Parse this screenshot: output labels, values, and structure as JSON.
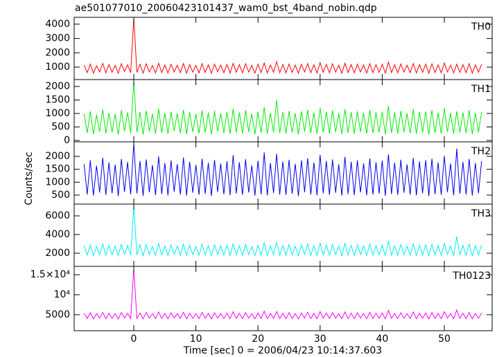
{
  "chart_data": {
    "type": "line",
    "title": "ae501077010_20060423101437_wam0_bst_4band_nobin.qdp",
    "xlabel": "Time [sec] 0 = 2006/04/23 10:14:37.603",
    "ylabel": "Counts/sec",
    "xlim": [
      -9.6,
      57.7
    ],
    "xticks": [
      0,
      10,
      20,
      30,
      40,
      50
    ],
    "x": [
      -8,
      -7.5,
      -7,
      -6.5,
      -6,
      -5.5,
      -5,
      -4.5,
      -4,
      -3.5,
      -3,
      -2.5,
      -2,
      -1.5,
      -1,
      -0.5,
      0,
      0.5,
      1,
      1.5,
      2,
      2.5,
      3,
      3.5,
      4,
      4.5,
      5,
      5.5,
      6,
      6.5,
      7,
      7.5,
      8,
      8.5,
      9,
      9.5,
      10,
      10.5,
      11,
      11.5,
      12,
      12.5,
      13,
      13.5,
      14,
      14.5,
      15,
      15.5,
      16,
      16.5,
      17,
      17.5,
      18,
      18.5,
      19,
      19.5,
      20,
      20.5,
      21,
      21.5,
      22,
      22.5,
      23,
      23.5,
      24,
      24.5,
      25,
      25.5,
      26,
      26.5,
      27,
      27.5,
      28,
      28.5,
      29,
      29.5,
      30,
      30.5,
      31,
      31.5,
      32,
      32.5,
      33,
      33.5,
      34,
      34.5,
      35,
      35.5,
      36,
      36.5,
      37,
      37.5,
      38,
      38.5,
      39,
      39.5,
      40,
      40.5,
      41,
      41.5,
      42,
      42.5,
      43,
      43.5,
      44,
      44.5,
      45,
      45.5,
      46,
      46.5,
      47,
      47.5,
      48,
      48.5,
      49,
      49.5,
      50,
      50.5,
      51,
      51.5,
      52,
      52.5,
      53,
      53.5,
      54,
      54.5,
      55,
      55.5,
      56
    ],
    "series": [
      {
        "name": "TH0",
        "color": "#ff0000",
        "ylim": [
          130,
          4480
        ],
        "yticks": [
          1000,
          2000,
          3000,
          4000
        ],
        "values": [
          1150,
          620,
          1210,
          580,
          1090,
          660,
          1260,
          600,
          1180,
          640,
          1120,
          570,
          1240,
          690,
          1160,
          610,
          4400,
          640,
          1190,
          580,
          1230,
          660,
          1110,
          600,
          1270,
          620,
          1150,
          590,
          1200,
          670,
          1130,
          610,
          1250,
          580,
          1180,
          650,
          1120,
          600,
          1240,
          630,
          1160,
          570,
          1210,
          680,
          1140,
          610,
          1190,
          590,
          1260,
          640,
          1170,
          600,
          1230,
          660,
          1120,
          580,
          1200,
          620,
          1290,
          590,
          1150,
          650,
          1380,
          610,
          1180,
          600,
          1220,
          630,
          1140,
          570,
          1200,
          660,
          1250,
          610,
          1160,
          590,
          1310,
          640,
          1190,
          600,
          1230,
          650,
          1130,
          580,
          1270,
          620,
          1180,
          600,
          1210,
          660,
          1150,
          590,
          1240,
          610,
          1170,
          630,
          1200,
          580,
          1350,
          620,
          1160,
          600,
          1220,
          650,
          1130,
          610,
          1250,
          590,
          1180,
          640,
          1200,
          570,
          1230,
          620,
          1160,
          600,
          1290,
          660,
          1140,
          590,
          1210,
          630,
          1170,
          610,
          1240,
          580,
          1150,
          640,
          1190
        ]
      },
      {
        "name": "TH1",
        "color": "#00ee00",
        "ylim": [
          -51,
          2256
        ],
        "yticks": [
          0,
          500,
          1000,
          1500,
          2000
        ],
        "values": [
          1000,
          280,
          1080,
          230,
          950,
          320,
          1150,
          260,
          1020,
          300,
          980,
          210,
          1120,
          340,
          1040,
          270,
          2200,
          300,
          1060,
          220,
          1100,
          330,
          990,
          250,
          1170,
          290,
          1010,
          240,
          1070,
          350,
          1000,
          270,
          1130,
          230,
          1050,
          310,
          980,
          260,
          1110,
          290,
          1030,
          220,
          1090,
          340,
          1000,
          270,
          1060,
          250,
          1180,
          300,
          1040,
          260,
          1120,
          320,
          990,
          230,
          1070,
          280,
          1230,
          250,
          1020,
          310,
          1500,
          270,
          1050,
          260,
          1090,
          290,
          1010,
          220,
          1080,
          320,
          1140,
          270,
          1030,
          250,
          1200,
          300,
          1060,
          260,
          1110,
          310,
          1000,
          240,
          1160,
          280,
          1050,
          260,
          1080,
          320,
          1020,
          250,
          1130,
          270,
          1040,
          290,
          1070,
          230,
          1280,
          280,
          1030,
          260,
          1090,
          310,
          1000,
          270,
          1150,
          250,
          1050,
          300,
          1070,
          220,
          1120,
          280,
          1030,
          260,
          1190,
          320,
          1010,
          250,
          1080,
          290,
          1040,
          270,
          1130,
          240,
          1020,
          300,
          1060
        ]
      },
      {
        "name": "TH2",
        "color": "#0000ee",
        "ylim": [
          151,
          2563
        ],
        "yticks": [
          500,
          1000,
          1500,
          2000
        ],
        "values": [
          1700,
          520,
          1850,
          480,
          1640,
          600,
          1950,
          510,
          1760,
          570,
          1680,
          460,
          1900,
          620,
          1780,
          530,
          2500,
          560,
          1820,
          470,
          1880,
          610,
          1660,
          500,
          2000,
          540,
          1740,
          490,
          1840,
          630,
          1700,
          520,
          1960,
          480,
          1790,
          590,
          1670,
          510,
          1910,
          550,
          1750,
          470,
          1860,
          620,
          1720,
          530,
          1810,
          500,
          2050,
          560,
          1770,
          510,
          1890,
          600,
          1650,
          480,
          1830,
          530,
          2150,
          490,
          1740,
          580,
          2100,
          520,
          1800,
          510,
          1870,
          550,
          1710,
          460,
          1840,
          610,
          1930,
          520,
          1760,
          490,
          2060,
          570,
          1820,
          510,
          1880,
          590,
          1690,
          480,
          1980,
          540,
          1790,
          500,
          1850,
          600,
          1730,
          490,
          1920,
          520,
          1770,
          560,
          1830,
          470,
          2080,
          540,
          1750,
          510,
          1870,
          590,
          1690,
          520,
          1940,
          490,
          1800,
          570,
          1850,
          460,
          1910,
          530,
          1760,
          510,
          2020,
          610,
          1720,
          490,
          2300,
          550,
          1780,
          520,
          1900,
          480,
          1740,
          570,
          1820
        ]
      },
      {
        "name": "TH3",
        "color": "#00eeee",
        "ylim": [
          593,
          7259
        ],
        "yticks": [
          2000,
          4000,
          6000
        ],
        "values": [
          2800,
          1800,
          2900,
          1750,
          2720,
          1860,
          3000,
          1780,
          2850,
          1830,
          2760,
          1720,
          2950,
          1880,
          2820,
          1790,
          7000,
          1820,
          2880,
          1740,
          2930,
          1870,
          2730,
          1770,
          3050,
          1810,
          2790,
          1760,
          2890,
          1890,
          2750,
          1800,
          2980,
          1750,
          2840,
          1850,
          2710,
          1780,
          2960,
          1820,
          2800,
          1730,
          2910,
          1880,
          2770,
          1790,
          2860,
          1760,
          3020,
          1830,
          2810,
          1780,
          2940,
          1860,
          2700,
          1740,
          2870,
          1800,
          3150,
          1760,
          2790,
          1840,
          3200,
          1790,
          2850,
          1780,
          2920,
          1820,
          2760,
          1730,
          2890,
          1870,
          2990,
          1790,
          2810,
          1760,
          3100,
          1840,
          2870,
          1780,
          2930,
          1850,
          2740,
          1750,
          3060,
          1810,
          2840,
          1770,
          2900,
          1870,
          2780,
          1760,
          2970,
          1790,
          2820,
          1830,
          2880,
          1740,
          3300,
          1810,
          2800,
          1780,
          2920,
          1850,
          2740,
          1790,
          3000,
          1760,
          2850,
          1840,
          2900,
          1730,
          2960,
          1800,
          2810,
          1780,
          3050,
          1870,
          2770,
          1760,
          3800,
          1820,
          2830,
          1790,
          2950,
          1750,
          2790,
          1840,
          2870
        ]
      },
      {
        "name": "TH0123",
        "color": "#ff00ff",
        "ylim": [
          1000,
          17100
        ],
        "yticks": [
          5000,
          {
            "value": 10000,
            "label": "10⁴"
          },
          {
            "value": 15000,
            "label": "1.5×10⁴"
          }
        ],
        "values": [
          5300,
          4050,
          5500,
          3950,
          5250,
          4150,
          5600,
          4000,
          5400,
          4100,
          5280,
          3920,
          5550,
          4180,
          5350,
          4020,
          16500,
          4080,
          5450,
          3960,
          5520,
          4160,
          5260,
          3990,
          5700,
          4060,
          5320,
          3980,
          5480,
          4190,
          5290,
          4030,
          5620,
          3970,
          5380,
          4120,
          5240,
          4010,
          5580,
          4070,
          5340,
          3940,
          5500,
          4170,
          5300,
          4020,
          5410,
          3990,
          5750,
          4090,
          5360,
          4010,
          5530,
          4140,
          5230,
          3960,
          5440,
          4040,
          5900,
          3980,
          5330,
          4110,
          5800,
          4020,
          5390,
          4010,
          5510,
          4080,
          5280,
          3930,
          5460,
          4160,
          5640,
          4020,
          5350,
          3990,
          5780,
          4100,
          5420,
          4030,
          5520,
          4130,
          5250,
          3970,
          5680,
          4060,
          5370,
          4000,
          5470,
          4170,
          5300,
          3980,
          5600,
          4030,
          5360,
          4090,
          5430,
          3950,
          6100,
          4070,
          5340,
          4010,
          5500,
          4130,
          5260,
          4030,
          5700,
          3990,
          5400,
          4110,
          5460,
          3940,
          5560,
          4050,
          5350,
          4000,
          5760,
          4160,
          5290,
          3980,
          6200,
          4080,
          5380,
          4020,
          5570,
          3960,
          5320,
          4100,
          5440
        ]
      }
    ]
  }
}
